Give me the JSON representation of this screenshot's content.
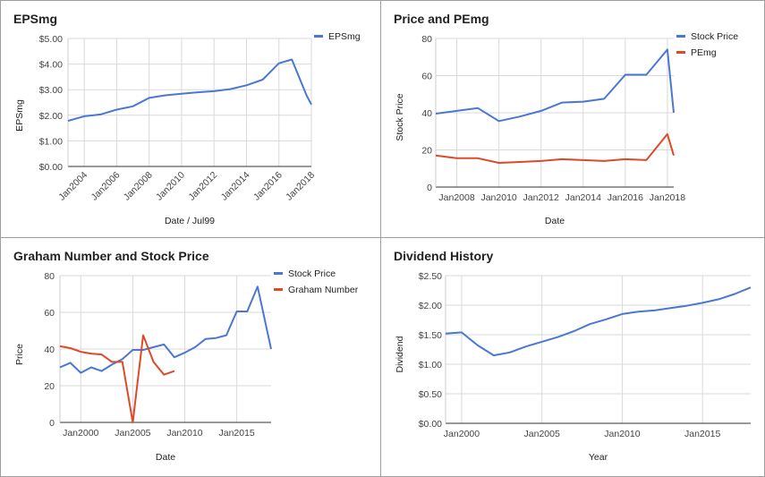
{
  "colors": {
    "blue": "#4a77d4",
    "red": "#dc4a27",
    "grid": "#d9d9d9",
    "axis": "#333333"
  },
  "chart_data": [
    {
      "type": "line",
      "title": "EPSmg",
      "xlabel": "Date / Jul99",
      "ylabel": "EPSmg",
      "xlim": [
        2003,
        2018
      ],
      "ylim": [
        0,
        5
      ],
      "yticks": [
        0,
        1,
        2,
        3,
        4,
        5
      ],
      "ytick_labels": [
        "$0.00",
        "$1.00",
        "$2.00",
        "$3.00",
        "$4.00",
        "$5.00"
      ],
      "xticks": [
        2004,
        2006,
        2008,
        2010,
        2012,
        2014,
        2016,
        2018
      ],
      "xtick_labels": [
        "Jan2004",
        "Jan2006",
        "Jan2008",
        "Jan2010",
        "Jan2012",
        "Jan2014",
        "Jan2016",
        "Jan2018"
      ],
      "xtick_rotate": true,
      "grid": true,
      "legend": "right",
      "series": [
        {
          "name": "EPSmg",
          "color": "#4a77d4",
          "x": [
            2003,
            2004,
            2005,
            2006,
            2007,
            2008,
            2009,
            2010,
            2011,
            2012,
            2013,
            2014,
            2015,
            2016,
            2016.8,
            2017.7,
            2018
          ],
          "y": [
            1.78,
            1.96,
            2.03,
            2.22,
            2.35,
            2.68,
            2.78,
            2.84,
            2.9,
            2.94,
            3.02,
            3.17,
            3.39,
            4.03,
            4.18,
            2.78,
            2.42
          ]
        }
      ]
    },
    {
      "type": "line",
      "title": "Price and PEmg",
      "xlabel": "Date",
      "ylabel": "Stock Price",
      "xlim": [
        2007,
        2018.3
      ],
      "ylim": [
        0,
        80
      ],
      "yticks": [
        0,
        20,
        40,
        60,
        80
      ],
      "ytick_labels": [
        "0",
        "20",
        "40",
        "60",
        "80"
      ],
      "xticks": [
        2008,
        2010,
        2012,
        2014,
        2016,
        2018
      ],
      "xtick_labels": [
        "Jan2008",
        "Jan2010",
        "Jan2012",
        "Jan2014",
        "Jan2016",
        "Jan2018"
      ],
      "xtick_rotate": false,
      "grid": true,
      "legend": "right",
      "series": [
        {
          "name": "Stock Price",
          "color": "#4a77d4",
          "x": [
            2007,
            2008,
            2009,
            2010,
            2011,
            2012,
            2013,
            2014,
            2015,
            2016,
            2017,
            2018,
            2018.3
          ],
          "y": [
            39.5,
            41,
            42.5,
            35.5,
            38,
            41,
            45.5,
            46,
            47.5,
            60.5,
            60.5,
            74,
            40
          ]
        },
        {
          "name": "PEmg",
          "color": "#dc4a27",
          "x": [
            2007,
            2008,
            2009,
            2010,
            2011,
            2012,
            2013,
            2014,
            2015,
            2016,
            2017,
            2018,
            2018.3
          ],
          "y": [
            17,
            15.5,
            15.5,
            13,
            13.5,
            14,
            15,
            14.5,
            14,
            15,
            14.5,
            28.5,
            17
          ]
        }
      ]
    },
    {
      "type": "line",
      "title": "Graham Number and Stock Price",
      "xlabel": "Date",
      "ylabel": "Price",
      "xlim": [
        1998,
        2018.3
      ],
      "ylim": [
        0,
        80
      ],
      "yticks": [
        0,
        20,
        40,
        60,
        80
      ],
      "ytick_labels": [
        "0",
        "20",
        "40",
        "60",
        "80"
      ],
      "xticks": [
        2000,
        2005,
        2010,
        2015
      ],
      "xtick_labels": [
        "Jan2000",
        "Jan2005",
        "Jan2010",
        "Jan2015"
      ],
      "xtick_rotate": false,
      "grid": true,
      "legend": "right",
      "series": [
        {
          "name": "Stock Price",
          "color": "#4a77d4",
          "x": [
            1998,
            1999,
            2000,
            2001,
            2002,
            2003,
            2004,
            2005,
            2006,
            2007,
            2008,
            2009,
            2010,
            2011,
            2012,
            2013,
            2014,
            2015,
            2016,
            2017,
            2018.3
          ],
          "y": [
            30,
            32.5,
            27,
            30,
            28,
            31.5,
            34.5,
            39.5,
            39.5,
            41,
            42.5,
            35.5,
            38,
            41,
            45.5,
            46,
            47.5,
            60.5,
            60.5,
            74,
            40
          ]
        },
        {
          "name": "Graham Number",
          "color": "#dc4a27",
          "x": [
            1998,
            1999,
            2000,
            2001,
            2002,
            2003,
            2004,
            2005,
            2006,
            2007,
            2008,
            2009
          ],
          "y": [
            41.5,
            40.5,
            38.5,
            37.5,
            37,
            33,
            33,
            0,
            47.5,
            33,
            26,
            28
          ]
        }
      ]
    },
    {
      "type": "line",
      "title": "Dividend History",
      "xlabel": "Year",
      "ylabel": "Dividend",
      "xlim": [
        1999,
        2018
      ],
      "ylim": [
        0,
        2.5
      ],
      "yticks": [
        0,
        0.5,
        1,
        1.5,
        2,
        2.5
      ],
      "ytick_labels": [
        "$0.00",
        "$0.50",
        "$1.00",
        "$1.50",
        "$2.00",
        "$2.50"
      ],
      "xticks": [
        2000,
        2005,
        2010,
        2015
      ],
      "xtick_labels": [
        "Jan2000",
        "Jan2005",
        "Jan2010",
        "Jan2015"
      ],
      "xtick_rotate": false,
      "grid": true,
      "legend": "none",
      "series": [
        {
          "name": "",
          "color": "#4a77d4",
          "x": [
            1999,
            2000,
            2001,
            2002,
            2003,
            2004,
            2005,
            2006,
            2007,
            2008,
            2009,
            2010,
            2011,
            2012,
            2013,
            2014,
            2015,
            2016,
            2017,
            2018
          ],
          "y": [
            1.52,
            1.54,
            1.32,
            1.15,
            1.2,
            1.3,
            1.38,
            1.46,
            1.56,
            1.68,
            1.76,
            1.85,
            1.89,
            1.91,
            1.95,
            1.99,
            2.04,
            2.1,
            2.19,
            2.3
          ]
        }
      ]
    }
  ]
}
